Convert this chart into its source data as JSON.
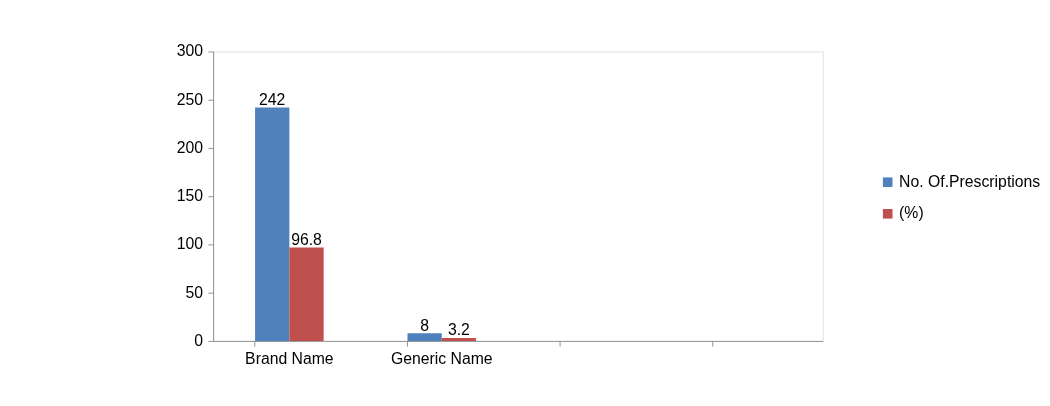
{
  "chart_data": {
    "type": "bar",
    "categories": [
      "Brand Name",
      "Generic Name",
      null,
      null
    ],
    "series": [
      {
        "name": "No. Of.Prescriptions",
        "color": "#4f81bd",
        "values": [
          242,
          8,
          null,
          null
        ]
      },
      {
        "name": "(%)",
        "color": "#c0504d",
        "values": [
          96.8,
          3.2,
          null,
          null
        ]
      }
    ],
    "ylim": [
      0,
      300
    ],
    "yticks": [
      0,
      50,
      100,
      150,
      200,
      250,
      300
    ],
    "grid": false,
    "legend": "right",
    "data_labels": true
  }
}
